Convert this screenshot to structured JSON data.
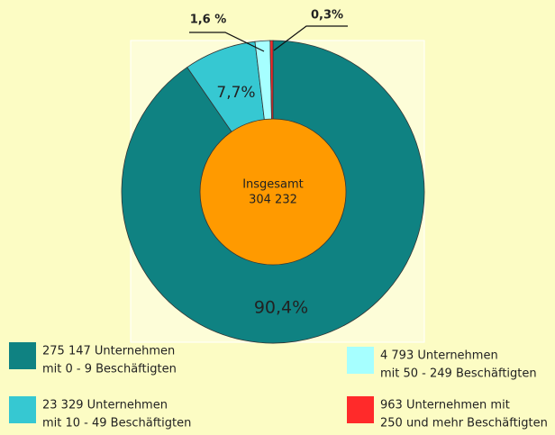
{
  "chart_data": {
    "type": "pie",
    "categories": [
      [
        "275 147 Unternehmen",
        "mit 0 - 9  Beschäftigten"
      ],
      [
        "23 329 Unternehmen",
        "mit 10 - 49  Beschäftigten"
      ],
      [
        "4 793 Unternehmen",
        "mit 50 - 249 Beschäftigten"
      ],
      [
        "963 Unternehmen mit",
        "250 und mehr Beschäftigten"
      ]
    ],
    "values": [
      90.4,
      7.7,
      1.6,
      0.3
    ],
    "value_labels": [
      "90,4%",
      "7,7%",
      "1,6 %",
      "0,3%"
    ],
    "colors": [
      "#0f8282",
      "#36c8d2",
      "#a6ffff",
      "#ff2a2a"
    ],
    "center_label": [
      "Insgesamt",
      "304 232"
    ],
    "center_color": "#ff9a00"
  }
}
